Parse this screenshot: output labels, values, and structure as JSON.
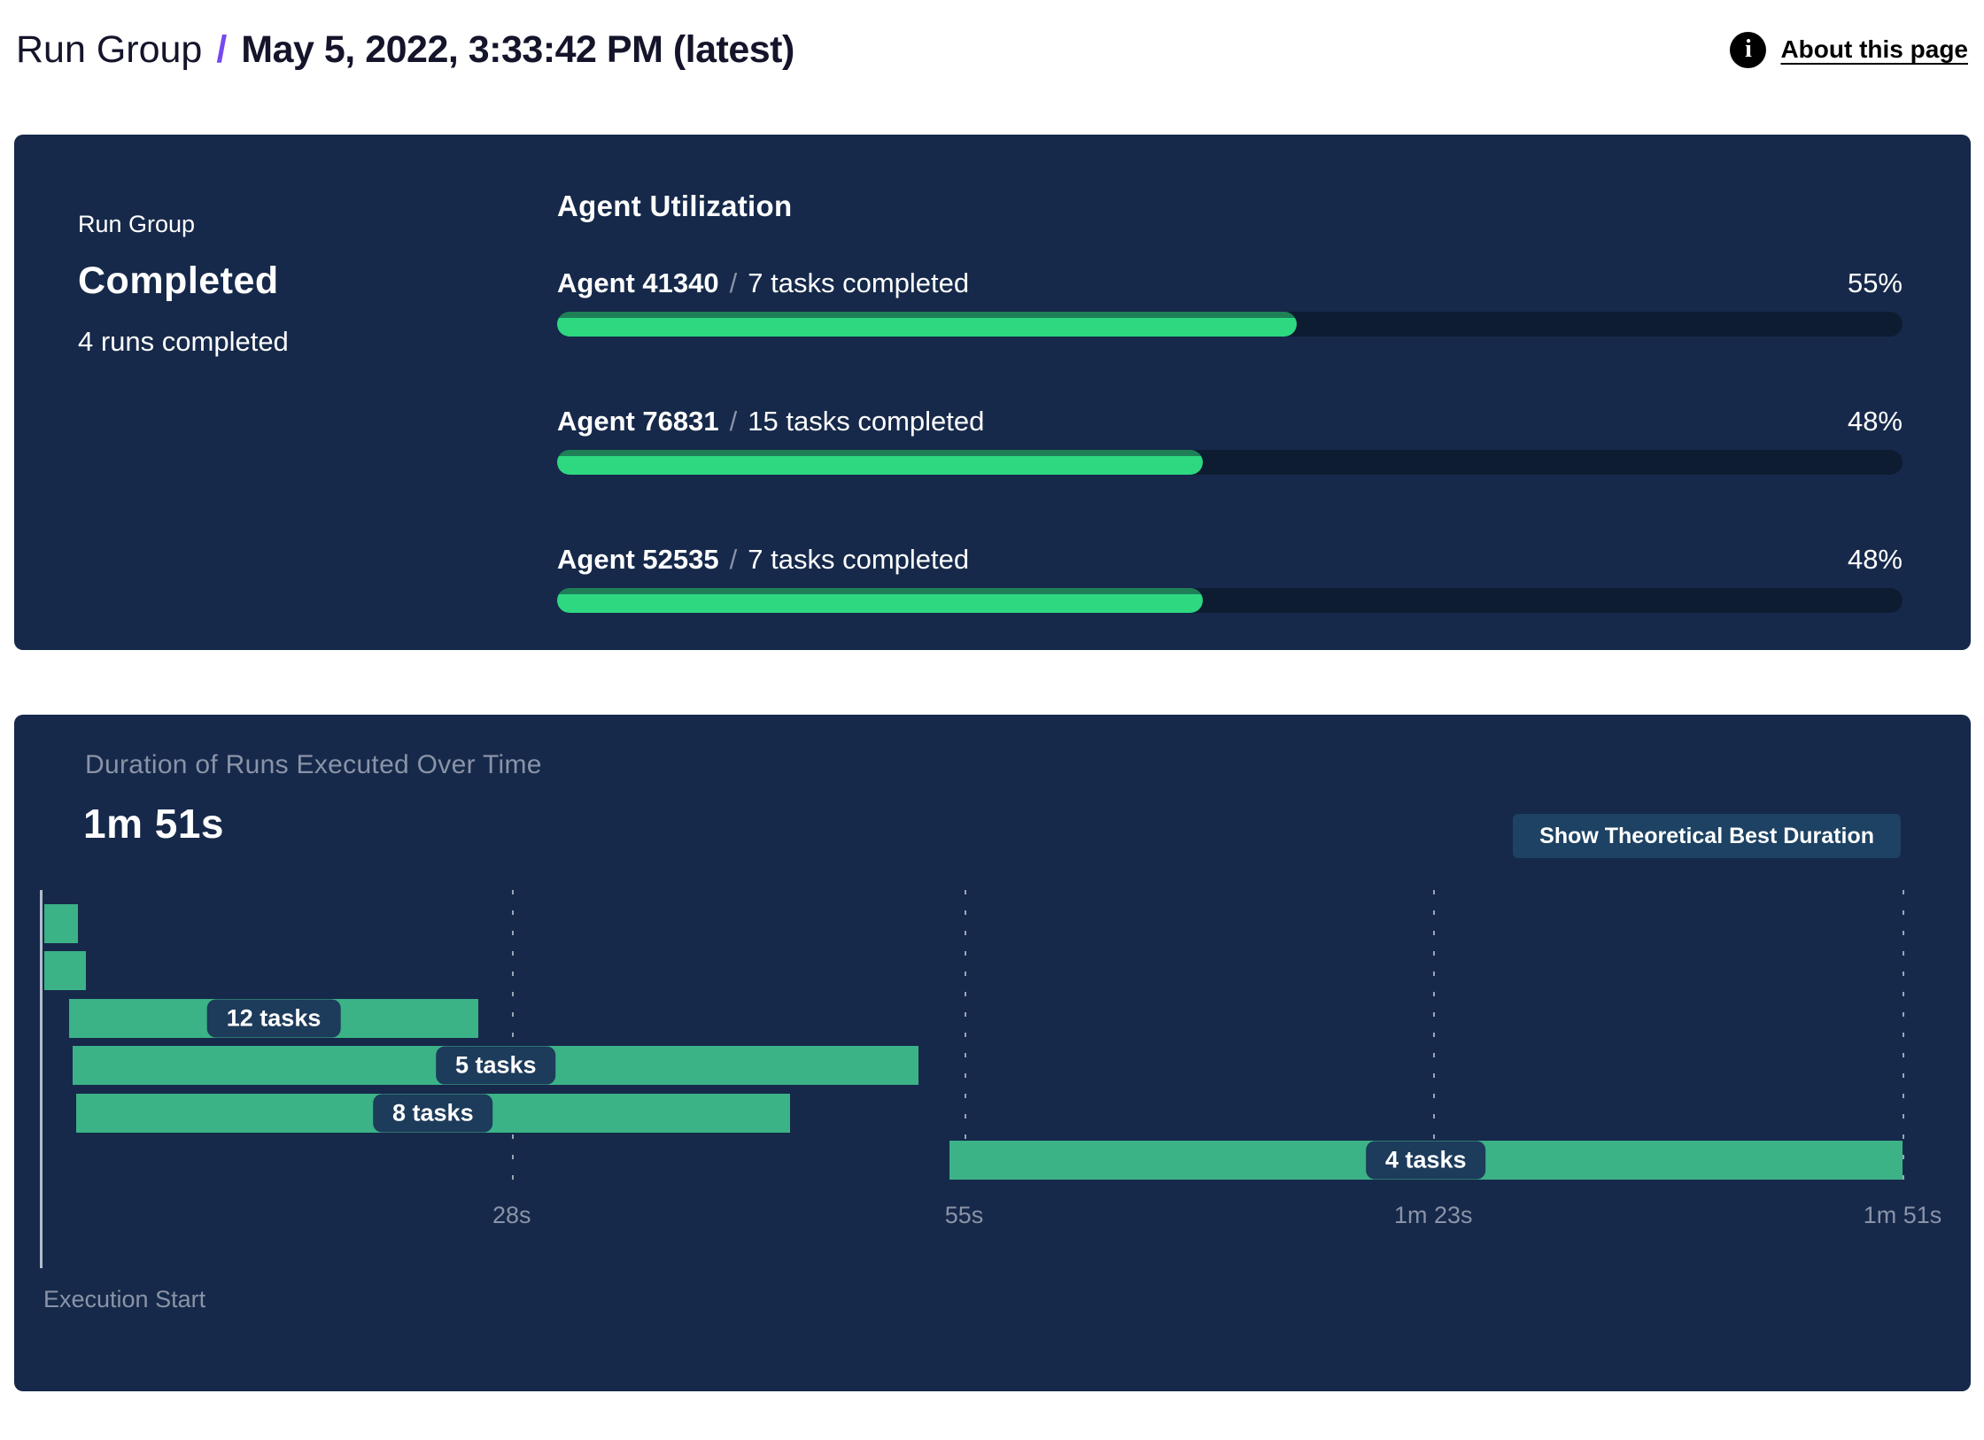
{
  "header": {
    "breadcrumb_root": "Run Group",
    "separator": "/",
    "title": "May 5, 2022, 3:33:42 PM (latest)",
    "about": {
      "label": "About this page",
      "icon_glyph": "i"
    }
  },
  "summary": {
    "panel_label": "Run Group",
    "status": "Completed",
    "runs_completed": "4 runs completed"
  },
  "agent_utilization": {
    "title": "Agent Utilization",
    "separator": "/",
    "agents": [
      {
        "name": "Agent 41340",
        "tasks_completed": "7 tasks completed",
        "percent": 55,
        "percent_label": "55%"
      },
      {
        "name": "Agent 76831",
        "tasks_completed": "15 tasks completed",
        "percent": 48,
        "percent_label": "48%"
      },
      {
        "name": "Agent 52535",
        "tasks_completed": "7 tasks completed",
        "percent": 48,
        "percent_label": "48%"
      }
    ]
  },
  "duration_section": {
    "title": "Duration of Runs Executed Over Time",
    "total_duration": "1m 51s",
    "button_label": "Show Theoretical Best Duration",
    "x_axis_label": "Execution Start"
  },
  "chart_data": {
    "type": "bar",
    "subtype": "gantt-timeline",
    "title": "Duration of Runs Executed Over Time",
    "xlabel": "Execution Start",
    "x_unit": "seconds",
    "xlim": [
      0,
      111
    ],
    "grid": "dashed-vertical",
    "bar_color": "#3cb287",
    "ticks": [
      {
        "value": 28,
        "label": "28s"
      },
      {
        "value": 55,
        "label": "55s"
      },
      {
        "value": 83,
        "label": "1m 23s"
      },
      {
        "value": 111,
        "label": "1m 51s"
      }
    ],
    "bars": [
      {
        "start_s": 0.1,
        "end_s": 2.1,
        "label": ""
      },
      {
        "start_s": 0.1,
        "end_s": 2.6,
        "label": ""
      },
      {
        "start_s": 1.6,
        "end_s": 26.0,
        "label": "12 tasks"
      },
      {
        "start_s": 1.8,
        "end_s": 52.3,
        "label": "5 tasks"
      },
      {
        "start_s": 2.0,
        "end_s": 44.6,
        "label": "8 tasks"
      },
      {
        "start_s": 54.1,
        "end_s": 111.0,
        "label": "4 tasks"
      }
    ]
  },
  "colors": {
    "accent_purple": "#7648f0",
    "panel_bg": "#16294a",
    "progress_fill": "#2dd881",
    "progress_fill_top": "#1f8057",
    "progress_track": "#0e1c31",
    "gantt_bar_green": "#3cb287",
    "pill_bg": "#1d3b5a",
    "button_bg": "#1d4263",
    "muted_text": "#8a93a7"
  }
}
